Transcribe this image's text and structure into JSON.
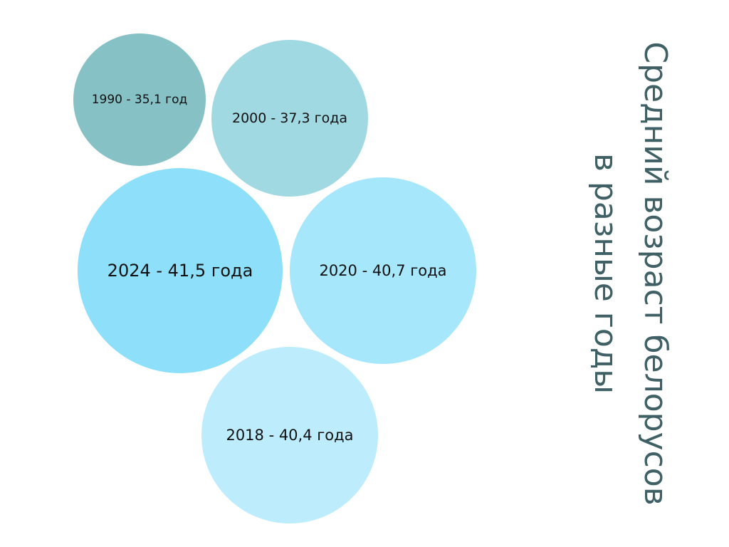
{
  "title": {
    "line1": "Средний возраст белорусов",
    "line2": "в разные годы"
  },
  "chart_data": {
    "type": "bubble",
    "title": "Средний возраст белорусов в разные годы",
    "series": [
      {
        "year": 1990,
        "value": 35.1,
        "label": "1990 - 35,1 год",
        "color": "#86c1c6"
      },
      {
        "year": 2000,
        "value": 37.3,
        "label": "2000 - 37,3 года",
        "color": "#a1d9e3"
      },
      {
        "year": 2024,
        "value": 41.5,
        "label": "2024 - 41,5 года",
        "color": "#8ee0fa"
      },
      {
        "year": 2020,
        "value": 40.7,
        "label": "2020 - 40,7 года",
        "color": "#a6e7fc"
      },
      {
        "year": 2018,
        "value": 40.4,
        "label": "2018 - 40,4 года",
        "color": "#bdedfd"
      }
    ]
  }
}
